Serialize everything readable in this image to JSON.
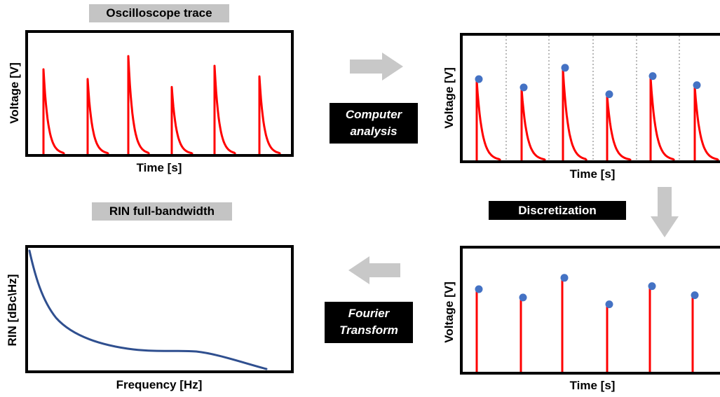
{
  "labels": {
    "oscilloscope_title": "Oscilloscope trace",
    "rin_title": "RIN full-bandwidth",
    "computer_analysis_line1": "Computer",
    "computer_analysis_line2": "analysis",
    "discretization": "Discretization",
    "fourier_line1": "Fourier",
    "fourier_line2": "Transform"
  },
  "axes": {
    "voltage": "Voltage [V]",
    "time": "Time [s]",
    "rin": "RIN [dBc\\Hz]",
    "frequency": "Frequency [Hz]"
  },
  "colors": {
    "trace": "#ff0000",
    "marker": "#4472c4",
    "rin_curve": "#2f4f8f",
    "arrow": "#c8c8c8"
  },
  "chart_data": [
    {
      "type": "line",
      "panel": "oscilloscope",
      "pulse_peaks": [
        1.0,
        0.89,
        1.15,
        0.8,
        1.04,
        0.92
      ]
    },
    {
      "type": "line",
      "panel": "computer-analysis",
      "pulse_peaks": [
        1.0,
        0.89,
        1.15,
        0.8,
        1.04,
        0.92
      ],
      "segment_separators": 5
    },
    {
      "type": "bar",
      "panel": "discretization",
      "values": [
        1.0,
        0.89,
        1.15,
        0.8,
        1.04,
        0.92
      ]
    },
    {
      "type": "line",
      "panel": "rin",
      "shape": "decaying-with-shoulder"
    }
  ]
}
